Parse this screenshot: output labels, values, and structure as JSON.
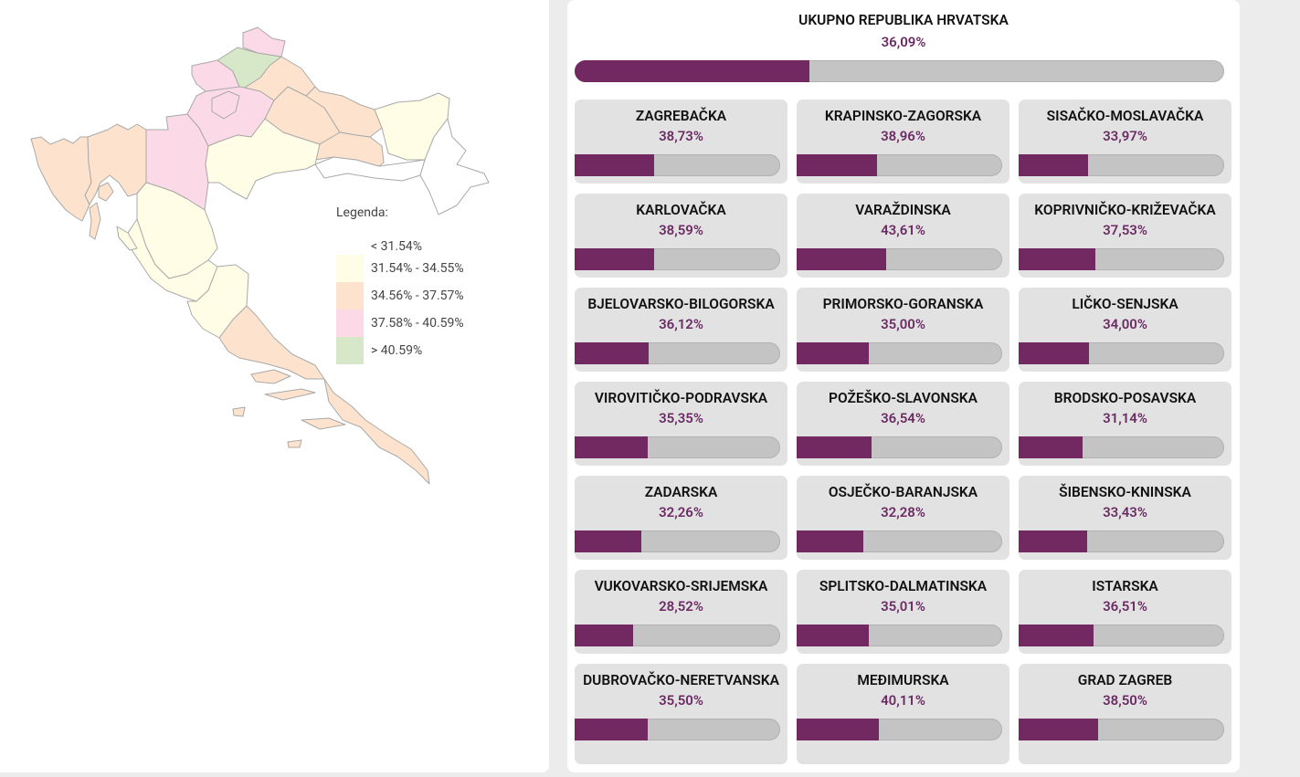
{
  "legend": {
    "title": "Legenda:",
    "items": [
      {
        "label": "< 31.54%",
        "color": "#ffffff"
      },
      {
        "label": "31.54% - 34.55%",
        "color": "#fffde6"
      },
      {
        "label": "34.56% - 37.57%",
        "color": "#fde3cd"
      },
      {
        "label": "37.58% - 40.59%",
        "color": "#fbd9e6"
      },
      {
        "label": "> 40.59%",
        "color": "#d6e8c7"
      }
    ]
  },
  "total": {
    "name": "UKUPNO REPUBLIKA HRVATSKA",
    "pct": "36,09%",
    "value": 36.09
  },
  "counties": [
    {
      "name": "ZAGREBAČKA",
      "pct": "38,73%",
      "value": 38.73
    },
    {
      "name": "KRAPINSKO-ZAGORSKA",
      "pct": "38,96%",
      "value": 38.96
    },
    {
      "name": "SISAČKO-MOSLAVAČKA",
      "pct": "33,97%",
      "value": 33.97
    },
    {
      "name": "KARLOVAČKA",
      "pct": "38,59%",
      "value": 38.59
    },
    {
      "name": "VARAŽDINSKA",
      "pct": "43,61%",
      "value": 43.61
    },
    {
      "name": "KOPRIVNIČKO-KRIŽEVAČKA",
      "pct": "37,53%",
      "value": 37.53
    },
    {
      "name": "BJELOVARSKO-BILOGORSKA",
      "pct": "36,12%",
      "value": 36.12
    },
    {
      "name": "PRIMORSKO-GORANSKA",
      "pct": "35,00%",
      "value": 35.0
    },
    {
      "name": "LIČKO-SENJSKA",
      "pct": "34,00%",
      "value": 34.0
    },
    {
      "name": "VIROVITIČKO-PODRAVSKA",
      "pct": "35,35%",
      "value": 35.35
    },
    {
      "name": "POŽEŠKO-SLAVONSKA",
      "pct": "36,54%",
      "value": 36.54
    },
    {
      "name": "BRODSKO-POSAVSKA",
      "pct": "31,14%",
      "value": 31.14
    },
    {
      "name": "ZADARSKA",
      "pct": "32,26%",
      "value": 32.26
    },
    {
      "name": "OSJEČKO-BARANJSKA",
      "pct": "32,28%",
      "value": 32.28
    },
    {
      "name": "ŠIBENSKO-KNINSKA",
      "pct": "33,43%",
      "value": 33.43
    },
    {
      "name": "VUKOVARSKO-SRIJEMSKA",
      "pct": "28,52%",
      "value": 28.52
    },
    {
      "name": "SPLITSKO-DALMATINSKA",
      "pct": "35,01%",
      "value": 35.01
    },
    {
      "name": "ISTARSKA",
      "pct": "36,51%",
      "value": 36.51
    },
    {
      "name": "DUBROVAČKO-NERETVANSKA",
      "pct": "35,50%",
      "value": 35.5
    },
    {
      "name": "MEĐIMURSKA",
      "pct": "40,11%",
      "value": 40.11
    },
    {
      "name": "GRAD ZAGREB",
      "pct": "38,50%",
      "value": 38.5
    }
  ]
}
